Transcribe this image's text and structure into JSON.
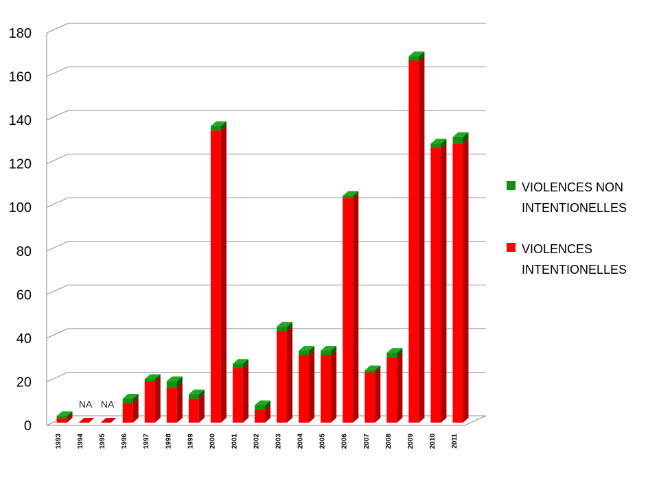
{
  "chart_data": {
    "type": "bar",
    "stacked": true,
    "three_d": true,
    "categories": [
      "1993",
      "1994",
      "1995",
      "1996",
      "1997",
      "1998",
      "1999",
      "2000",
      "2001",
      "2002",
      "2003",
      "2004",
      "2005",
      "2006",
      "2007",
      "2008",
      "2009",
      "2010",
      "2011"
    ],
    "series": [
      {
        "name": "VIOLENCES INTENTIONELLES",
        "color": "#ff0000",
        "side_color": "#b00000",
        "values": [
          2,
          null,
          null,
          9,
          19,
          16,
          11,
          134,
          25,
          6,
          42,
          31,
          31,
          103,
          23,
          30,
          166,
          126,
          128
        ]
      },
      {
        "name": "VIOLENCES NON INTENTIONELLES",
        "color": "#138f13",
        "side_color": "#0a5a0a",
        "values": [
          1,
          null,
          null,
          2,
          1,
          3,
          2,
          2,
          2,
          2,
          2,
          2,
          2,
          1,
          1,
          2,
          2,
          2,
          3
        ]
      }
    ],
    "missing_label": "NA",
    "ylim": [
      0,
      180
    ],
    "yticks": [
      0,
      20,
      40,
      60,
      80,
      100,
      120,
      140,
      160,
      180
    ],
    "grid": true,
    "legend_position": "right",
    "title": "",
    "xlabel": "",
    "ylabel": ""
  }
}
